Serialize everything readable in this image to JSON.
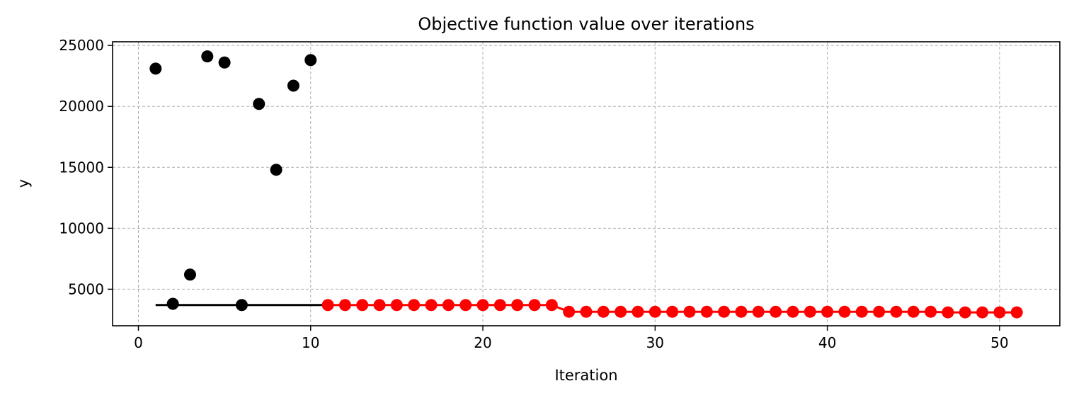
{
  "chart_data": {
    "type": "scatter",
    "title": "Objective function value over iterations",
    "xlabel": "Iteration",
    "ylabel": "y",
    "xlim": [
      -1.5,
      53.5
    ],
    "ylim": [
      2000,
      25300
    ],
    "xticks": [
      0,
      10,
      20,
      30,
      40,
      50
    ],
    "yticks": [
      5000,
      10000,
      15000,
      20000,
      25000
    ],
    "grid": true,
    "colors": {
      "initial": "#000000",
      "optimized": "#ff0000",
      "grid": "#b0b0b0"
    },
    "series": [
      {
        "id": "initial",
        "color": "#000000",
        "x": [
          1,
          2,
          3,
          4,
          5,
          6,
          7,
          8,
          9,
          10
        ],
        "y": [
          23100,
          3800,
          6200,
          24100,
          23600,
          3700,
          20200,
          14800,
          21700,
          23800
        ]
      },
      {
        "id": "optimized",
        "color": "#ff0000",
        "x": [
          11,
          12,
          13,
          14,
          15,
          16,
          17,
          18,
          19,
          20,
          21,
          22,
          23,
          24,
          25,
          26,
          27,
          28,
          29,
          30,
          31,
          32,
          33,
          34,
          35,
          36,
          37,
          38,
          39,
          40,
          41,
          42,
          43,
          44,
          45,
          46,
          47,
          48,
          49,
          50,
          51
        ],
        "y": [
          3700,
          3700,
          3700,
          3700,
          3700,
          3700,
          3700,
          3700,
          3700,
          3700,
          3700,
          3700,
          3700,
          3700,
          3150,
          3150,
          3150,
          3150,
          3150,
          3150,
          3150,
          3150,
          3150,
          3150,
          3150,
          3150,
          3150,
          3150,
          3150,
          3150,
          3150,
          3150,
          3150,
          3150,
          3150,
          3150,
          3100,
          3100,
          3100,
          3100,
          3100
        ]
      }
    ],
    "best_so_far": {
      "color_initial": "#000000",
      "color_optimized": "#ff0000",
      "x": [
        1,
        2,
        3,
        4,
        5,
        6,
        7,
        8,
        9,
        10,
        11,
        12,
        13,
        14,
        15,
        16,
        17,
        18,
        19,
        20,
        21,
        22,
        23,
        24,
        25,
        26,
        27,
        28,
        29,
        30,
        31,
        32,
        33,
        34,
        35,
        36,
        37,
        38,
        39,
        40,
        41,
        42,
        43,
        44,
        45,
        46,
        47,
        48,
        49,
        50,
        51
      ],
      "y": [
        3700,
        3700,
        3700,
        3700,
        3700,
        3700,
        3700,
        3700,
        3700,
        3700,
        3700,
        3700,
        3700,
        3700,
        3700,
        3700,
        3700,
        3700,
        3700,
        3700,
        3700,
        3700,
        3700,
        3700,
        3150,
        3150,
        3150,
        3150,
        3150,
        3150,
        3150,
        3150,
        3150,
        3150,
        3150,
        3150,
        3150,
        3150,
        3150,
        3150,
        3150,
        3150,
        3150,
        3150,
        3150,
        3150,
        3100,
        3100,
        3100,
        3100,
        3100
      ],
      "initial_count": 11
    }
  }
}
